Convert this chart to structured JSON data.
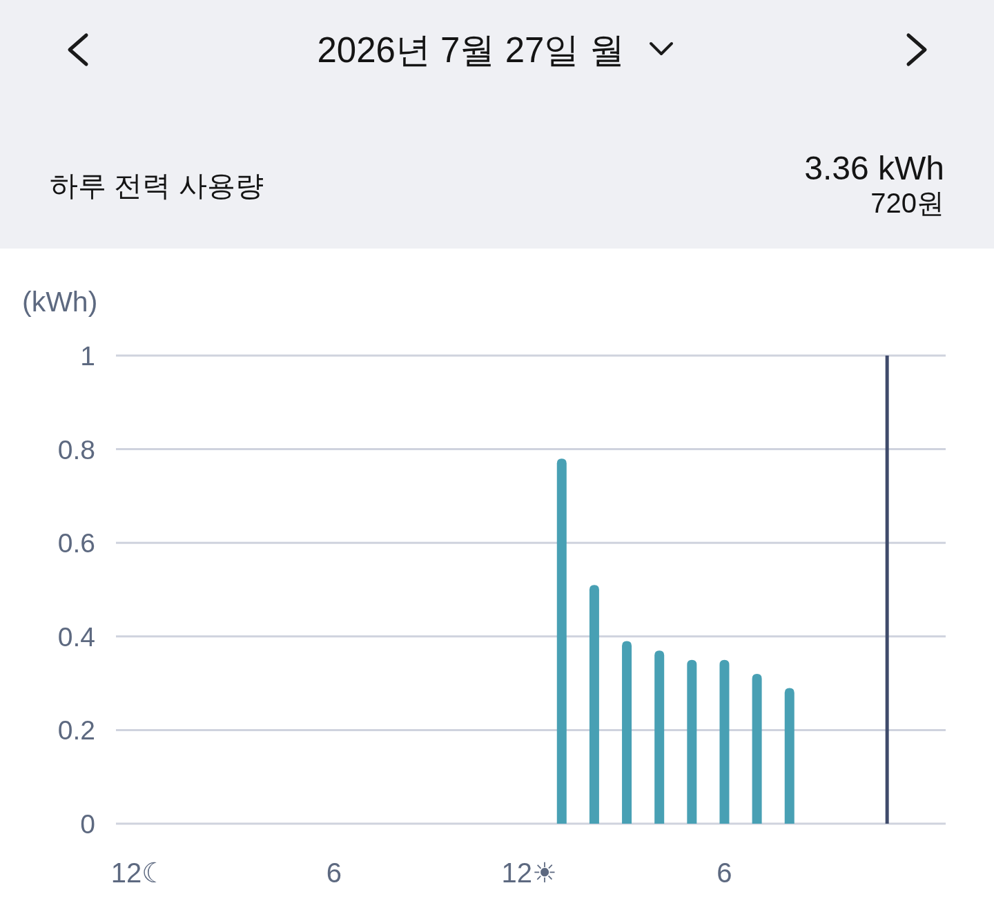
{
  "chart_data": {
    "type": "bar",
    "title": "2026년 7월 27일 월",
    "subtitle": "하루 전력 사용량",
    "annotations": [
      "3.36 kWh",
      "720원"
    ],
    "ylabel": "(kWh)",
    "x": [
      "2026-07-27T13:00",
      "2026-07-27T14:00",
      "2026-07-27T15:00",
      "2026-07-27T16:00",
      "2026-07-27T17:00",
      "2026-07-27T18:00",
      "2026-07-27T19:00",
      "2026-07-27T20:00"
    ],
    "values": [
      0.78,
      0.51,
      0.39,
      0.37,
      0.35,
      0.35,
      0.32,
      0.29
    ],
    "color": "#48a0b4",
    "xlim": [
      "2026-07-26T23:18",
      "2026-07-28T00:48"
    ],
    "xticks": [
      {
        "value": "2026-07-27T00:00",
        "label": "12☾"
      },
      {
        "value": "2026-07-27T06:00",
        "label": "6"
      },
      {
        "value": "2026-07-27T12:00",
        "label": "12☀"
      },
      {
        "value": "2026-07-27T18:00",
        "label": "6"
      }
    ],
    "ylim": [
      0,
      1
    ],
    "yticks": [
      0,
      0.2,
      0.4,
      0.6,
      0.8,
      1
    ],
    "grid": "y",
    "ref_lines": [
      {
        "axis": "x",
        "value": "2026-07-27T23:00",
        "color": "#3f4b6b"
      }
    ]
  }
}
